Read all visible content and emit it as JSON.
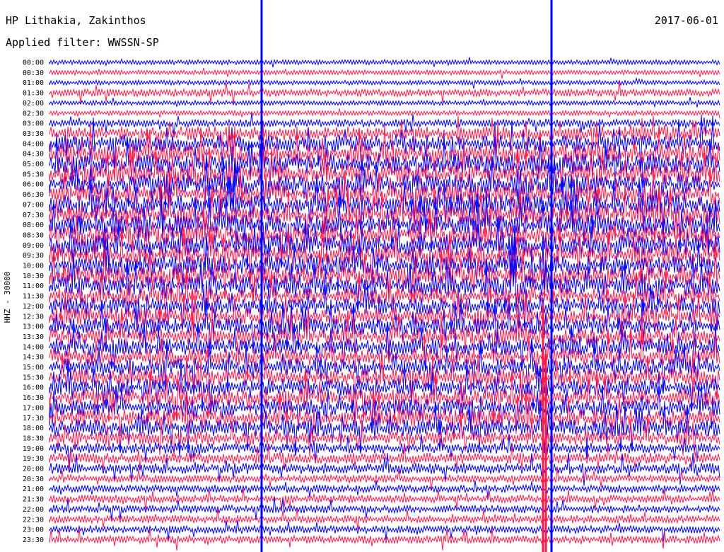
{
  "header": {
    "station": "HP Lithakia, Zakinthos",
    "date": "2017-06-01",
    "filter": "Applied filter: WWSSN-SP"
  },
  "chart_data": {
    "type": "line",
    "subtype": "helicorder",
    "channel_label": "HHZ - 30000",
    "row_labels": [
      "00:00",
      "00:30",
      "01:00",
      "01:30",
      "02:00",
      "02:30",
      "03:00",
      "03:30",
      "04:00",
      "04:30",
      "05:00",
      "05:30",
      "06:00",
      "06:30",
      "07:00",
      "07:30",
      "08:00",
      "08:30",
      "09:00",
      "09:30",
      "10:00",
      "10:30",
      "11:00",
      "11:30",
      "12:00",
      "12:30",
      "13:00",
      "13:30",
      "14:00",
      "14:30",
      "15:00",
      "15:30",
      "16:00",
      "16:30",
      "17:00",
      "17:30",
      "18:00",
      "18:30",
      "19:00",
      "19:30",
      "20:00",
      "20:30",
      "21:00",
      "21:30",
      "22:00",
      "22:30",
      "23:00",
      "23:30"
    ],
    "colors": [
      "#0000ff",
      "#ff1a4a"
    ],
    "noise_level": [
      1,
      1,
      1,
      2,
      1,
      1,
      2,
      4,
      5,
      6,
      6,
      6,
      6,
      6,
      6,
      6,
      6,
      6,
      6,
      6,
      6,
      6,
      6,
      5,
      5,
      5,
      5,
      5,
      5,
      5,
      5,
      5,
      5,
      5,
      5,
      5,
      5,
      4,
      3,
      3,
      3,
      2,
      2,
      2,
      2,
      2,
      2,
      2
    ]
  }
}
